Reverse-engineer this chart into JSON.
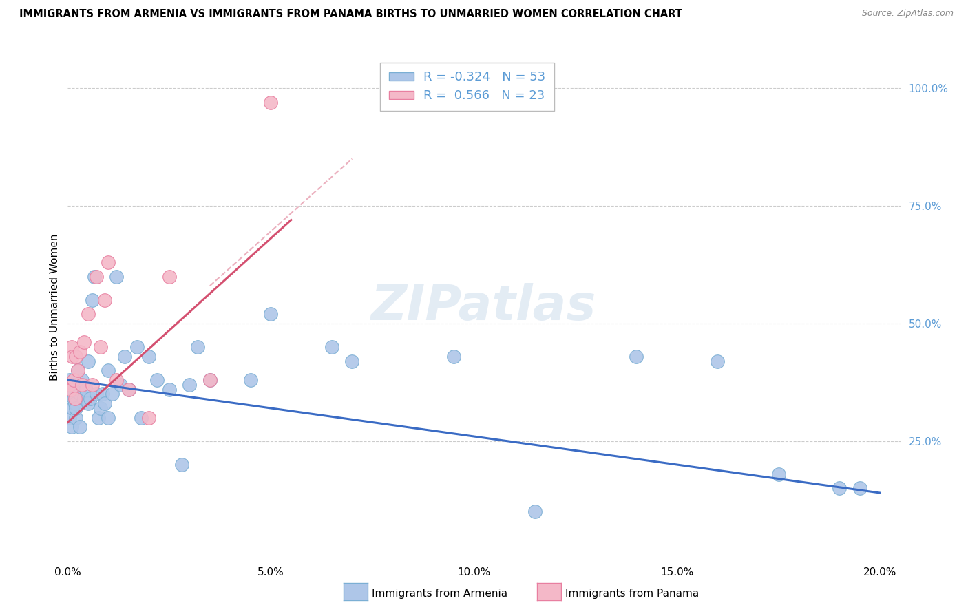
{
  "title": "IMMIGRANTS FROM ARMENIA VS IMMIGRANTS FROM PANAMA BIRTHS TO UNMARRIED WOMEN CORRELATION CHART",
  "source": "Source: ZipAtlas.com",
  "ylabel": "Births to Unmarried Women",
  "x_tick_labels": [
    "0.0%",
    "5.0%",
    "10.0%",
    "15.0%",
    "20.0%"
  ],
  "x_tick_values": [
    0.0,
    5.0,
    10.0,
    15.0,
    20.0
  ],
  "y_tick_labels": [
    "100.0%",
    "75.0%",
    "50.0%",
    "25.0%"
  ],
  "y_tick_values": [
    100.0,
    75.0,
    50.0,
    25.0
  ],
  "xlim": [
    0.0,
    20.5
  ],
  "ylim": [
    0.0,
    107.0
  ],
  "legend_r_armenia": "-0.324",
  "legend_n_armenia": "53",
  "legend_r_panama": "0.566",
  "legend_n_panama": "23",
  "armenia_color": "#aec6e8",
  "panama_color": "#f4b8c8",
  "armenia_edge": "#7bafd4",
  "panama_edge": "#e87fa0",
  "trend_armenia_color": "#3a6bc4",
  "trend_panama_color": "#d45070",
  "background_color": "#ffffff",
  "grid_color": "#cccccc",
  "right_axis_color": "#5b9bd5",
  "legend_text_color": "#5b9bd5",
  "armenia_x": [
    0.05,
    0.05,
    0.1,
    0.1,
    0.12,
    0.15,
    0.15,
    0.18,
    0.2,
    0.2,
    0.25,
    0.3,
    0.3,
    0.35,
    0.4,
    0.45,
    0.5,
    0.5,
    0.55,
    0.6,
    0.65,
    0.7,
    0.75,
    0.8,
    0.85,
    0.9,
    1.0,
    1.0,
    1.1,
    1.2,
    1.3,
    1.4,
    1.5,
    1.7,
    1.8,
    2.0,
    2.2,
    2.5,
    2.8,
    3.0,
    3.2,
    3.5,
    4.5,
    5.0,
    6.5,
    7.0,
    9.5,
    11.5,
    14.0,
    16.0,
    17.5,
    19.0,
    19.5
  ],
  "armenia_y": [
    38.0,
    30.0,
    35.0,
    28.0,
    32.0,
    37.0,
    34.0,
    33.0,
    30.0,
    32.0,
    40.0,
    35.0,
    28.0,
    38.0,
    34.0,
    36.0,
    42.0,
    33.0,
    34.0,
    55.0,
    60.0,
    35.0,
    30.0,
    32.0,
    35.0,
    33.0,
    40.0,
    30.0,
    35.0,
    60.0,
    37.0,
    43.0,
    36.0,
    45.0,
    30.0,
    43.0,
    38.0,
    36.0,
    20.0,
    37.0,
    45.0,
    38.0,
    38.0,
    52.0,
    45.0,
    42.0,
    43.0,
    10.0,
    43.0,
    42.0,
    18.0,
    15.0,
    15.0
  ],
  "panama_x": [
    0.05,
    0.08,
    0.1,
    0.12,
    0.15,
    0.18,
    0.2,
    0.25,
    0.3,
    0.35,
    0.4,
    0.5,
    0.6,
    0.7,
    0.8,
    0.9,
    1.0,
    1.2,
    1.5,
    2.0,
    2.5,
    3.5,
    5.0
  ],
  "panama_y": [
    37.0,
    36.0,
    45.0,
    43.0,
    38.0,
    34.0,
    43.0,
    40.0,
    44.0,
    37.0,
    46.0,
    52.0,
    37.0,
    60.0,
    45.0,
    55.0,
    63.0,
    38.0,
    36.0,
    30.0,
    60.0,
    38.0,
    97.0
  ],
  "trend_armenia_x0": 0.0,
  "trend_armenia_y0": 38.0,
  "trend_armenia_x1": 20.0,
  "trend_armenia_y1": 14.0,
  "trend_panama_x0": 0.0,
  "trend_panama_y0": 29.0,
  "trend_panama_x1": 5.5,
  "trend_panama_y1": 72.0,
  "trend_panama_dash_x0": 3.5,
  "trend_panama_dash_y0": 58.0,
  "trend_panama_dash_x1": 7.0,
  "trend_panama_dash_y1": 85.0
}
